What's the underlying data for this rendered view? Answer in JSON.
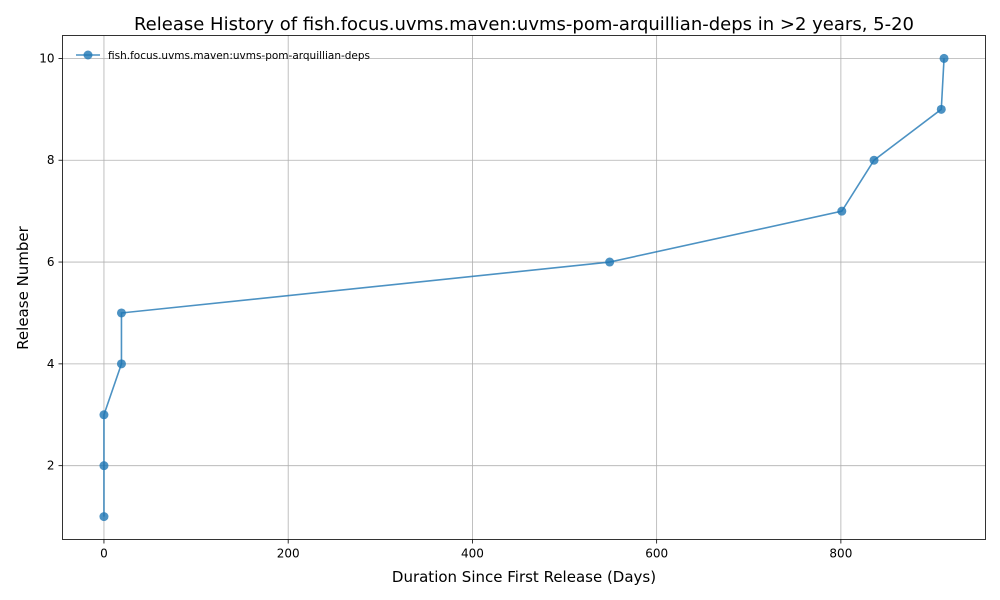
{
  "chart_data": {
    "type": "line",
    "title": "Release History of fish.focus.uvms.maven:uvms-pom-arquillian-deps in >2 years, 5-20",
    "xlabel": "Duration Since First Release (Days)",
    "ylabel": "Release Number",
    "xlim": [
      -45,
      957
    ],
    "ylim": [
      0.55,
      10.45
    ],
    "xticks": [
      0,
      200,
      400,
      600,
      800
    ],
    "yticks": [
      2,
      4,
      6,
      8,
      10
    ],
    "grid": true,
    "legend_position": "top-left",
    "series": [
      {
        "name": "fish.focus.uvms.maven:uvms-pom-arquillian-deps",
        "color": "#1f77b4",
        "x": [
          0,
          0,
          0,
          19,
          19,
          549,
          801,
          836,
          909,
          912
        ],
        "y": [
          1,
          2,
          3,
          4,
          5,
          6,
          7,
          8,
          9,
          10
        ]
      }
    ]
  }
}
